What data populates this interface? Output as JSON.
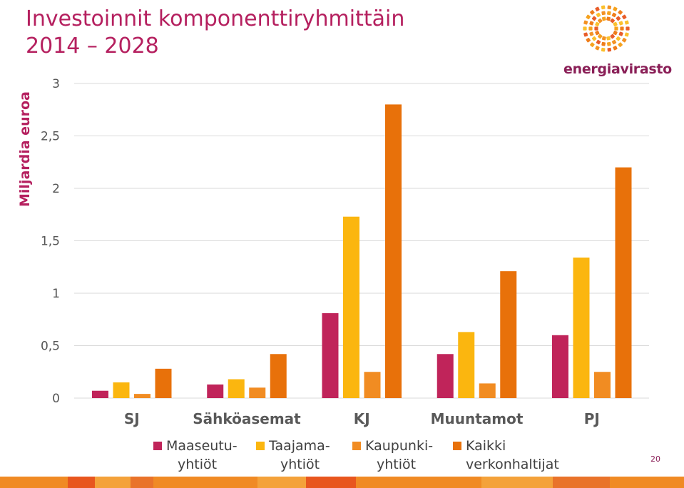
{
  "slide": {
    "title_line1": "Investoinnit komponenttiryhmittäin",
    "title_line2": "2014 – 2028",
    "logo_text": "energiavirasto",
    "page_number": "20"
  },
  "colors": {
    "title": "#b5205f",
    "maaseutu": "#c0245a",
    "taajama": "#fbb60f",
    "kaupunki": "#f18c22",
    "kaikki": "#e8710a"
  },
  "chart_data": {
    "type": "bar",
    "title": "",
    "xlabel": "",
    "ylabel": "Miljardia euroa",
    "ylim": [
      0,
      3
    ],
    "yticks": [
      "0",
      "0,5",
      "1",
      "1,5",
      "2",
      "2,5",
      "3"
    ],
    "grid": true,
    "legend_placement": "bottom",
    "categories": [
      "SJ",
      "Sähköasemat",
      "KJ",
      "Muuntamot",
      "PJ"
    ],
    "series": [
      {
        "name_line1": "Maaseutu-",
        "name_line2": "yhtiöt",
        "key": "maaseutu",
        "values": [
          0.07,
          0.13,
          0.81,
          0.42,
          0.6
        ]
      },
      {
        "name_line1": "Taajama-",
        "name_line2": "yhtiöt",
        "key": "taajama",
        "values": [
          0.15,
          0.18,
          1.73,
          0.63,
          1.34
        ]
      },
      {
        "name_line1": "Kaupunki-",
        "name_line2": "yhtiöt",
        "key": "kaupunki",
        "values": [
          0.04,
          0.1,
          0.25,
          0.14,
          0.25
        ]
      },
      {
        "name_line1": "Kaikki",
        "name_line2": "verkonhaltijat",
        "key": "kaikki",
        "values": [
          0.28,
          0.42,
          2.8,
          1.21,
          2.2
        ]
      }
    ]
  }
}
